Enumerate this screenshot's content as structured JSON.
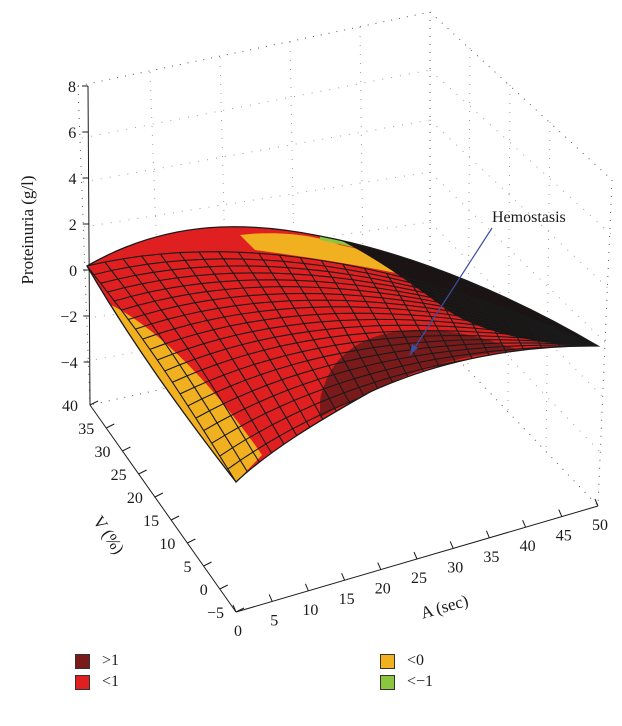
{
  "chart_data": {
    "type": "surface3d",
    "title": "",
    "zlabel": "Proteinuria (g/l)",
    "ylabel": "V (%)",
    "xlabel": "A (sec)",
    "x_axis": {
      "ticks": [
        0,
        5,
        10,
        15,
        20,
        25,
        30,
        35,
        40,
        45,
        50
      ],
      "range": [
        0,
        50
      ]
    },
    "y_axis": {
      "ticks": [
        -5,
        0,
        5,
        10,
        15,
        20,
        25,
        30,
        35,
        40
      ],
      "range": [
        -5,
        40
      ]
    },
    "z_axis": {
      "ticks": [
        8,
        6,
        4,
        2,
        0,
        -2,
        -4
      ],
      "range": [
        -4,
        8
      ]
    },
    "grid": true,
    "surface": {
      "description_of_levels": "fitted response surface peaking near z≈1.5 at mid A / mid-high V, dropping to about -4.2 at A=0,V=0 and ≈-3 at A=50,V=-5",
      "corner_values": [
        {
          "A": 0,
          "V": 40,
          "z": 0.3
        },
        {
          "A": 0,
          "V": -5,
          "z": -4.2
        },
        {
          "A": 50,
          "V": -5,
          "z": -3.0
        },
        {
          "A": 50,
          "V": 40,
          "z": -1.5
        }
      ],
      "peak": {
        "A": 25,
        "V": 35,
        "z": 1.5
      }
    },
    "legend": [
      {
        "label": ">1",
        "color": "#7a1a1a"
      },
      {
        "label": "<1",
        "color": "#e02020"
      },
      {
        "label": "<0",
        "color": "#f0b020"
      },
      {
        "label": "<−1",
        "color": "#8cc63f"
      }
    ],
    "annotation": {
      "text": "Hemostasis"
    }
  }
}
